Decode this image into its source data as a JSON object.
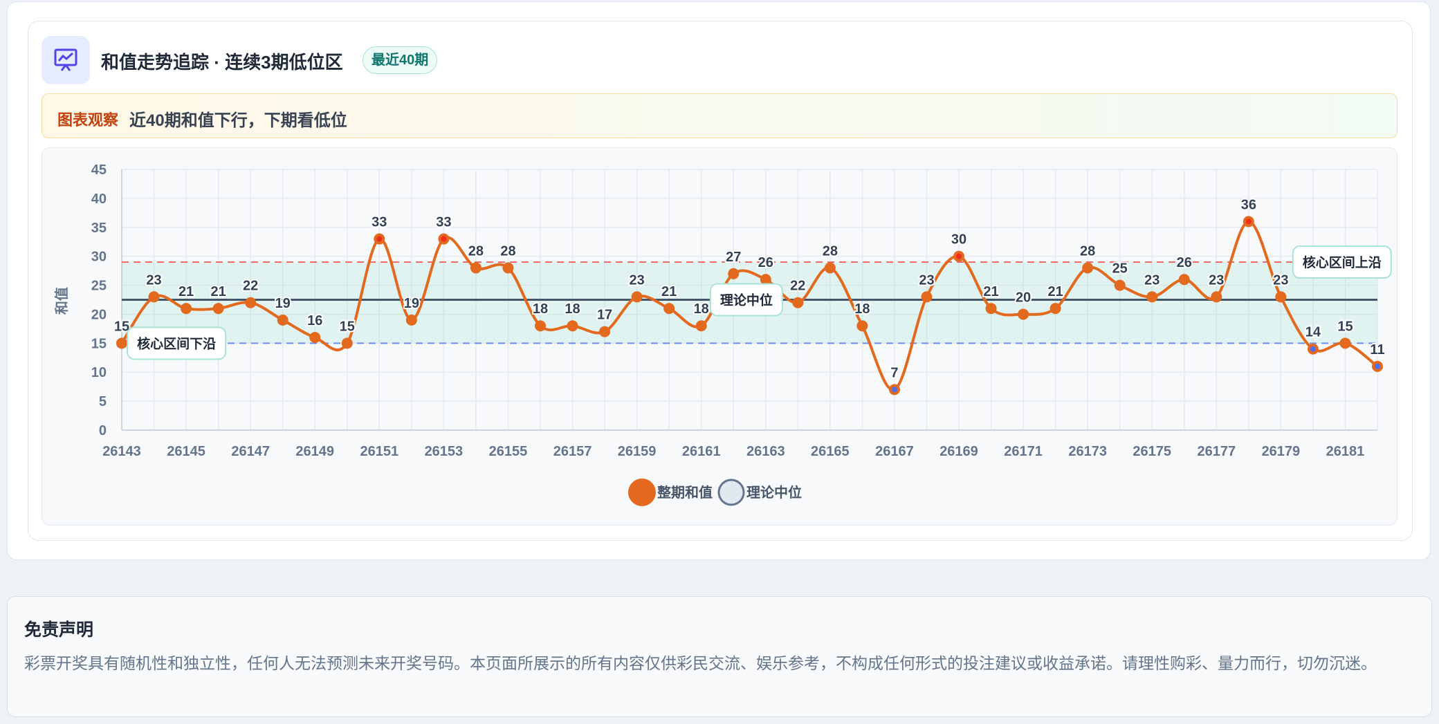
{
  "header": {
    "title": "和值走势追踪 · 连续3期低位区",
    "badge": "最近40期"
  },
  "observation": {
    "label": "图表观察",
    "text": "近40期和值下行，下期看低位"
  },
  "chart_data": {
    "type": "line",
    "y_label": "和值",
    "categories": [
      "26143",
      null,
      "26145",
      null,
      "26147",
      null,
      "26149",
      null,
      "26151",
      null,
      "26153",
      null,
      "26155",
      null,
      "26157",
      null,
      "26159",
      null,
      "26161",
      null,
      "26163",
      null,
      "26165",
      null,
      "26167",
      null,
      "26169",
      null,
      "26171",
      null,
      "26173",
      null,
      "26175",
      null,
      "26177",
      null,
      "26179",
      null,
      "26181",
      null
    ],
    "series": [
      {
        "name": "整期和值",
        "color": "#e2691d",
        "values": [
          15,
          23,
          21,
          21,
          22,
          19,
          16,
          15,
          33,
          19,
          33,
          28,
          28,
          18,
          18,
          17,
          23,
          21,
          18,
          27,
          26,
          22,
          28,
          18,
          7,
          23,
          30,
          21,
          20,
          21,
          28,
          25,
          23,
          26,
          23,
          36,
          23,
          14,
          15,
          11
        ]
      }
    ],
    "reference": {
      "lower": {
        "label": "核心区间下沿",
        "value": 15,
        "color": "#6b8ff0"
      },
      "median": {
        "label": "理论中位",
        "value": 22.5,
        "color": "#475569"
      },
      "upper": {
        "label": "核心区间上沿",
        "value": 29,
        "color": "#ef6b6b"
      }
    },
    "ylim": [
      0,
      45
    ],
    "yticks": [
      0,
      5,
      10,
      15,
      20,
      25,
      30,
      35,
      40,
      45
    ],
    "grid": true
  },
  "disclaimer": {
    "title": "免责声明",
    "text": "彩票开奖具有随机性和独立性，任何人无法预测未来开奖号码。本页面所展示的所有内容仅供彩民交流、娱乐参考，不构成任何形式的投注建议或收益承诺。请理性购彩、量力而行，切勿沉迷。"
  }
}
